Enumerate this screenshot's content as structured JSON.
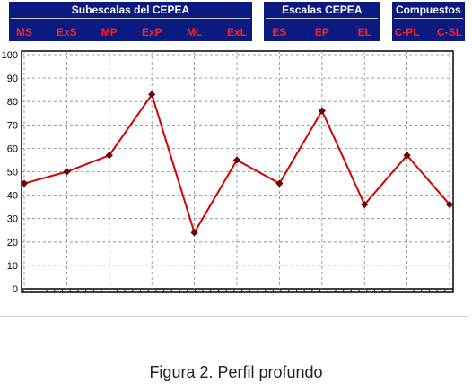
{
  "header": {
    "groups": [
      {
        "title": "Subescalas del CEPEA",
        "start": 0,
        "end": 5
      },
      {
        "title": "Escalas CEPEA",
        "start": 6,
        "end": 8
      },
      {
        "title": "Compuestos",
        "start": 9,
        "end": 10
      }
    ]
  },
  "chart_data": {
    "type": "line",
    "categories": [
      "MS",
      "ExS",
      "MP",
      "ExP",
      "ML",
      "ExL",
      "ES",
      "EP",
      "EL",
      "C-PL",
      "C-SL"
    ],
    "values": [
      45,
      50,
      57,
      83,
      24,
      55,
      45,
      76,
      36,
      57,
      36
    ],
    "ylim": [
      0,
      100
    ],
    "yticks": [
      0,
      10,
      20,
      30,
      40,
      50,
      60,
      70,
      80,
      90,
      100
    ],
    "grid": true,
    "line_color": "#d40000",
    "header_bg": "#0a1a80",
    "category_color": "#ff2020",
    "title": "Figura 2. Perfil profundo"
  }
}
